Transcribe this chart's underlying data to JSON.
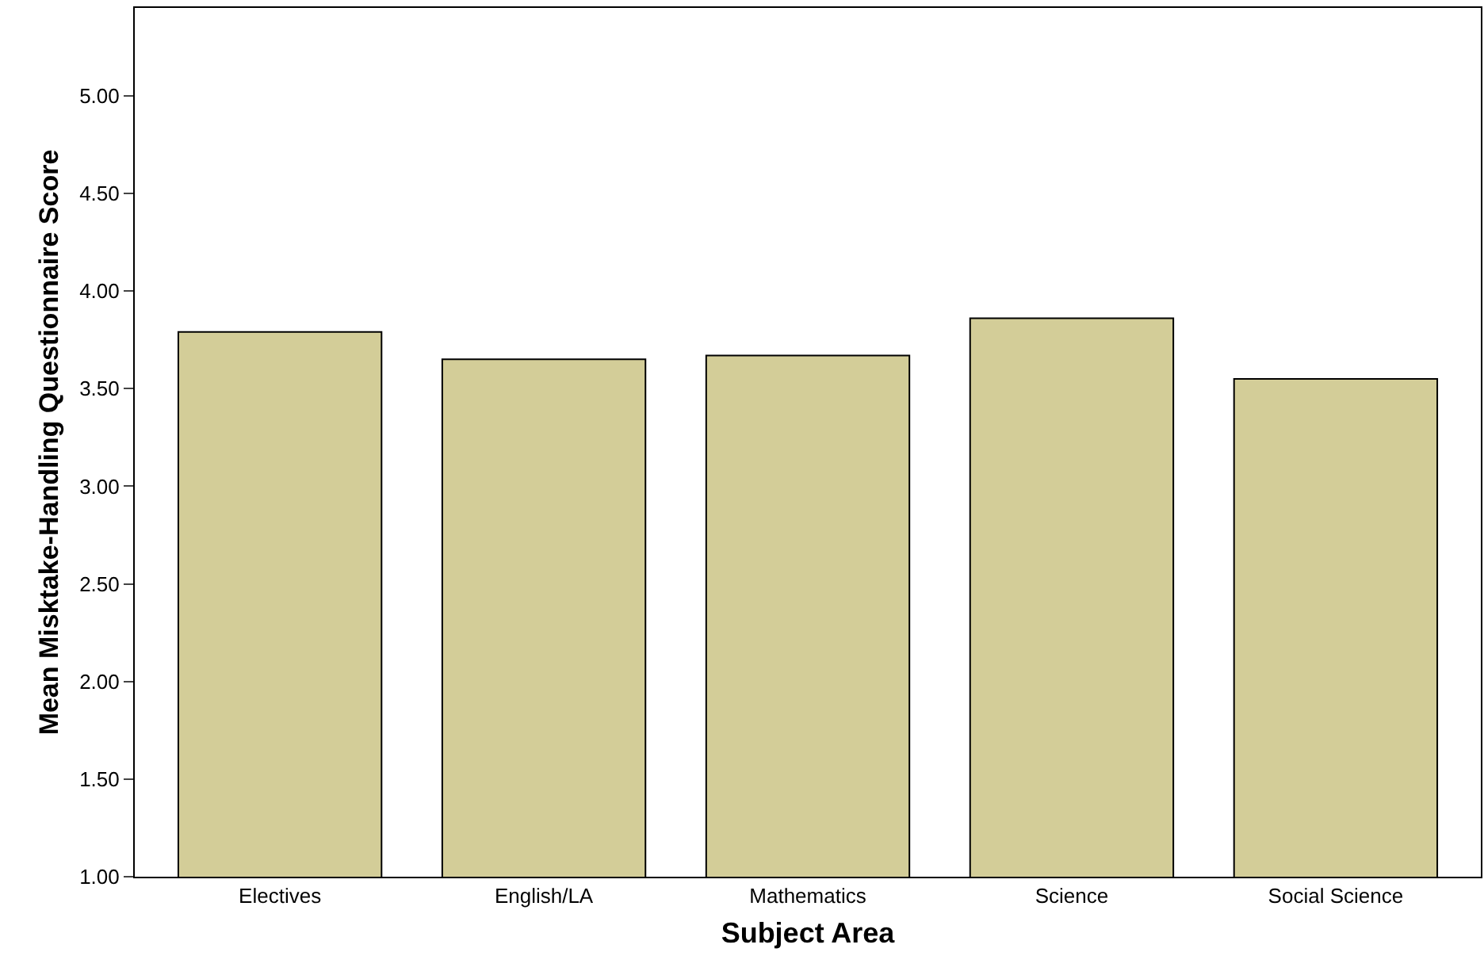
{
  "chart_data": {
    "type": "bar",
    "xlabel": "Subject Area",
    "ylabel": "Mean Misktake-Handling Questionnaire Score",
    "categories": [
      "Electives",
      "English/LA",
      "Mathematics",
      "Science",
      "Social Science"
    ],
    "values": [
      3.79,
      3.65,
      3.67,
      3.86,
      3.55
    ],
    "color": "#d3cd98",
    "ylim": [
      1.0,
      5.45
    ],
    "yticks": [
      {
        "value": 1,
        "label": "1.00"
      },
      {
        "value": 1.5,
        "label": "1.50"
      },
      {
        "value": 2,
        "label": "2.00"
      },
      {
        "value": 2.5,
        "label": "2.50"
      },
      {
        "value": 3,
        "label": "3.00"
      },
      {
        "value": 3.5,
        "label": "3.50"
      },
      {
        "value": 4,
        "label": "4.00"
      },
      {
        "value": 4.5,
        "label": "4.50"
      },
      {
        "value": 5,
        "label": "5.00"
      }
    ]
  }
}
